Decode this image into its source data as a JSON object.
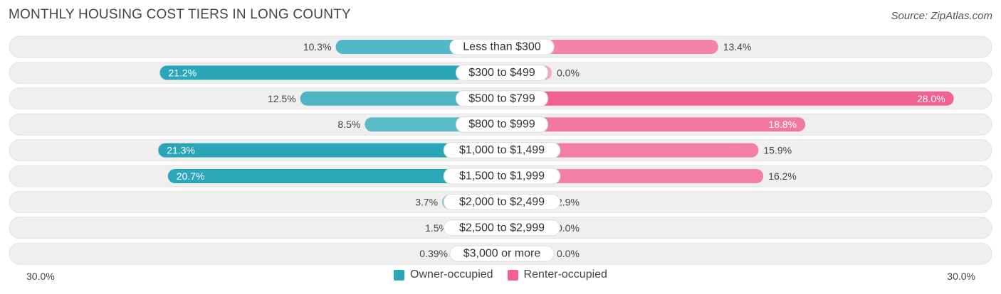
{
  "title": "MONTHLY HOUSING COST TIERS IN LONG COUNTY",
  "source": "Source: ZipAtlas.com",
  "colors": {
    "owner": "#2aa6b8",
    "owner_light": "#7cc7d3",
    "renter": "#f06290",
    "renter_light": "#f6a4bf",
    "row_bg": "#efefef"
  },
  "legend": {
    "owner_label": "Owner-occupied",
    "renter_label": "Renter-occupied"
  },
  "axis": {
    "left_label": "30.0%",
    "right_label": "30.0%"
  },
  "chart_data": {
    "type": "bar",
    "orientation": "diverging-horizontal",
    "xlim": [
      -30,
      30
    ],
    "categories": [
      "Less than $300",
      "$300 to $499",
      "$500 to $799",
      "$800 to $999",
      "$1,000 to $1,499",
      "$1,500 to $1,999",
      "$2,000 to $2,499",
      "$2,500 to $2,999",
      "$3,000 or more"
    ],
    "series": [
      {
        "name": "Owner-occupied",
        "values": [
          10.3,
          21.2,
          12.5,
          8.5,
          21.3,
          20.7,
          3.7,
          1.5,
          0.39
        ],
        "labels": [
          "10.3%",
          "21.2%",
          "12.5%",
          "8.5%",
          "21.3%",
          "20.7%",
          "3.7%",
          "1.5%",
          "0.39%"
        ]
      },
      {
        "name": "Renter-occupied",
        "values": [
          13.4,
          0.0,
          28.0,
          18.8,
          15.9,
          16.2,
          2.9,
          0.0,
          0.0
        ],
        "labels": [
          "13.4%",
          "0.0%",
          "28.0%",
          "18.8%",
          "15.9%",
          "16.2%",
          "2.9%",
          "0.0%",
          "0.0%"
        ]
      }
    ]
  }
}
